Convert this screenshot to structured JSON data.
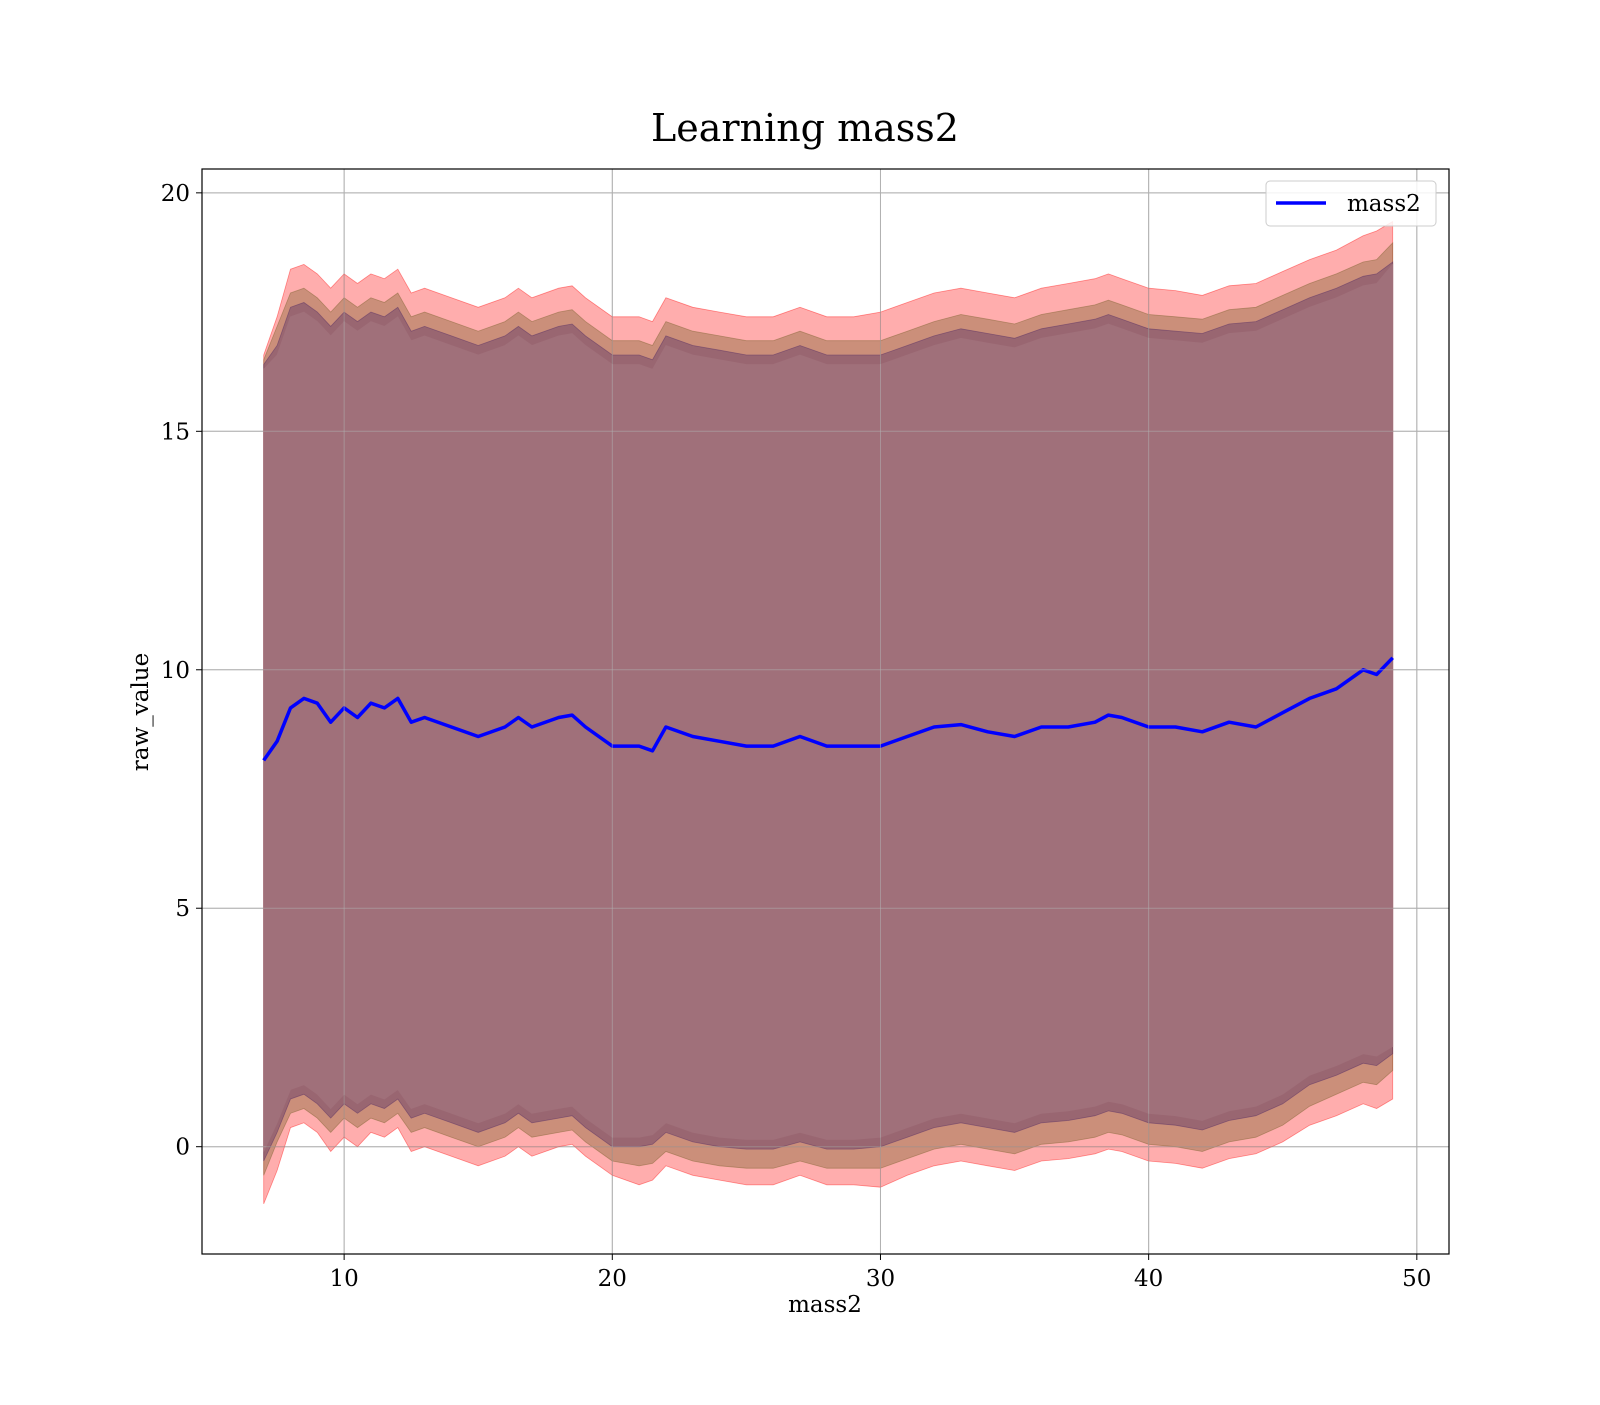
{
  "chart_data": {
    "type": "line",
    "title": "Learning mass2",
    "xlabel": "mass2",
    "ylabel": "raw_value",
    "xlim": [
      4.7,
      51.2
    ],
    "ylim": [
      -2.25,
      20.5
    ],
    "xticks": [
      10,
      20,
      30,
      40,
      50
    ],
    "yticks": [
      0,
      5,
      10,
      15,
      20
    ],
    "xtick_labels": [
      "10",
      "20",
      "30",
      "40",
      "50"
    ],
    "ytick_labels": [
      "0",
      "5",
      "10",
      "15",
      "20"
    ],
    "grid": true,
    "legend": {
      "position": "top-right",
      "entries": [
        "mass2"
      ]
    },
    "x": [
      7.0,
      7.5,
      8.0,
      8.5,
      9.0,
      9.5,
      10.0,
      10.5,
      11.0,
      11.5,
      12.0,
      12.5,
      13.0,
      14.0,
      15.0,
      16.0,
      16.5,
      17.0,
      18.0,
      18.5,
      19.0,
      20.0,
      21.0,
      21.5,
      22.0,
      23.0,
      24.0,
      25.0,
      26.0,
      27.0,
      28.0,
      29.0,
      30.0,
      31.0,
      32.0,
      33.0,
      34.0,
      35.0,
      36.0,
      37.0,
      38.0,
      38.5,
      39.0,
      40.0,
      41.0,
      42.0,
      43.0,
      44.0,
      45.0,
      46.0,
      47.0,
      48.0,
      48.5,
      49.1
    ],
    "series": [
      {
        "name": "mass2",
        "color": "#0000ff",
        "values": [
          8.1,
          8.5,
          9.2,
          9.4,
          9.3,
          8.9,
          9.2,
          9.0,
          9.3,
          9.2,
          9.4,
          8.9,
          9.0,
          8.8,
          8.6,
          8.8,
          9.0,
          8.8,
          9.0,
          9.05,
          8.8,
          8.4,
          8.4,
          8.3,
          8.8,
          8.6,
          8.5,
          8.4,
          8.4,
          8.6,
          8.4,
          8.4,
          8.4,
          8.6,
          8.8,
          8.85,
          8.7,
          8.6,
          8.8,
          8.8,
          8.9,
          9.05,
          9.0,
          8.8,
          8.8,
          8.7,
          8.9,
          8.8,
          9.1,
          9.4,
          9.6,
          10.0,
          9.9,
          10.25
        ]
      }
    ],
    "bands": [
      {
        "color": "#ff0000",
        "opacity": 0.32,
        "upper": [
          16.6,
          17.4,
          18.4,
          18.5,
          18.3,
          18.0,
          18.3,
          18.1,
          18.3,
          18.2,
          18.4,
          17.9,
          18.0,
          17.8,
          17.6,
          17.8,
          18.0,
          17.8,
          18.0,
          18.05,
          17.8,
          17.4,
          17.4,
          17.3,
          17.8,
          17.6,
          17.5,
          17.4,
          17.4,
          17.6,
          17.4,
          17.4,
          17.5,
          17.7,
          17.9,
          18.0,
          17.9,
          17.8,
          18.0,
          18.1,
          18.2,
          18.3,
          18.2,
          18.0,
          17.95,
          17.85,
          18.05,
          18.1,
          18.35,
          18.6,
          18.8,
          19.1,
          19.2,
          19.4
        ],
        "lower": [
          -1.2,
          -0.5,
          0.4,
          0.5,
          0.3,
          -0.1,
          0.2,
          0.0,
          0.3,
          0.2,
          0.4,
          -0.1,
          0.0,
          -0.2,
          -0.4,
          -0.2,
          0.0,
          -0.2,
          0.0,
          0.05,
          -0.2,
          -0.6,
          -0.8,
          -0.7,
          -0.4,
          -0.6,
          -0.7,
          -0.8,
          -0.8,
          -0.6,
          -0.8,
          -0.8,
          -0.85,
          -0.6,
          -0.4,
          -0.3,
          -0.4,
          -0.5,
          -0.3,
          -0.25,
          -0.15,
          -0.05,
          -0.1,
          -0.3,
          -0.35,
          -0.45,
          -0.25,
          -0.15,
          0.1,
          0.45,
          0.65,
          0.9,
          0.8,
          1.0
        ]
      },
      {
        "color": "#8b6a3c",
        "opacity": 0.45,
        "upper": [
          16.5,
          17.2,
          17.9,
          18.0,
          17.8,
          17.5,
          17.8,
          17.6,
          17.8,
          17.7,
          17.9,
          17.4,
          17.5,
          17.3,
          17.1,
          17.3,
          17.5,
          17.3,
          17.5,
          17.55,
          17.3,
          16.9,
          16.9,
          16.8,
          17.3,
          17.1,
          17.0,
          16.9,
          16.9,
          17.1,
          16.9,
          16.9,
          16.9,
          17.1,
          17.3,
          17.45,
          17.35,
          17.25,
          17.45,
          17.55,
          17.65,
          17.75,
          17.65,
          17.45,
          17.4,
          17.35,
          17.55,
          17.6,
          17.85,
          18.1,
          18.3,
          18.55,
          18.6,
          18.95
        ],
        "lower": [
          -0.6,
          0.1,
          0.7,
          0.8,
          0.6,
          0.3,
          0.6,
          0.4,
          0.6,
          0.5,
          0.7,
          0.3,
          0.4,
          0.2,
          0.0,
          0.2,
          0.4,
          0.2,
          0.3,
          0.35,
          0.1,
          -0.3,
          -0.4,
          -0.35,
          -0.1,
          -0.3,
          -0.4,
          -0.45,
          -0.45,
          -0.3,
          -0.45,
          -0.45,
          -0.45,
          -0.25,
          -0.05,
          0.05,
          -0.05,
          -0.15,
          0.05,
          0.1,
          0.2,
          0.3,
          0.25,
          0.05,
          0.0,
          -0.1,
          0.1,
          0.2,
          0.45,
          0.85,
          1.1,
          1.35,
          1.3,
          1.6
        ]
      },
      {
        "color": "#5e3566",
        "opacity": 0.45,
        "upper": [
          16.4,
          16.8,
          17.6,
          17.7,
          17.5,
          17.2,
          17.5,
          17.3,
          17.5,
          17.4,
          17.6,
          17.1,
          17.2,
          17.0,
          16.8,
          17.0,
          17.2,
          17.0,
          17.2,
          17.25,
          17.0,
          16.6,
          16.6,
          16.5,
          17.0,
          16.8,
          16.7,
          16.6,
          16.6,
          16.8,
          16.6,
          16.6,
          16.6,
          16.8,
          17.0,
          17.15,
          17.05,
          16.95,
          17.15,
          17.25,
          17.35,
          17.45,
          17.35,
          17.15,
          17.1,
          17.05,
          17.25,
          17.3,
          17.55,
          17.8,
          18.0,
          18.25,
          18.3,
          18.55
        ],
        "lower": [
          -0.3,
          0.3,
          1.0,
          1.1,
          0.9,
          0.6,
          0.9,
          0.7,
          0.9,
          0.8,
          1.0,
          0.6,
          0.7,
          0.5,
          0.3,
          0.5,
          0.7,
          0.5,
          0.6,
          0.65,
          0.4,
          0.0,
          0.0,
          0.05,
          0.3,
          0.1,
          0.0,
          -0.05,
          -0.05,
          0.1,
          -0.05,
          -0.05,
          0.0,
          0.2,
          0.4,
          0.5,
          0.4,
          0.3,
          0.5,
          0.55,
          0.65,
          0.75,
          0.7,
          0.5,
          0.45,
          0.35,
          0.55,
          0.65,
          0.9,
          1.3,
          1.5,
          1.75,
          1.7,
          1.95
        ]
      },
      {
        "color": "#a0707a",
        "opacity": 1.0,
        "upper": [
          16.3,
          16.6,
          17.4,
          17.5,
          17.3,
          17.0,
          17.3,
          17.1,
          17.3,
          17.2,
          17.4,
          16.9,
          17.0,
          16.8,
          16.6,
          16.8,
          17.0,
          16.8,
          17.0,
          17.05,
          16.8,
          16.4,
          16.4,
          16.3,
          16.8,
          16.6,
          16.5,
          16.4,
          16.4,
          16.6,
          16.4,
          16.4,
          16.4,
          16.6,
          16.8,
          16.95,
          16.85,
          16.75,
          16.95,
          17.05,
          17.15,
          17.25,
          17.15,
          16.95,
          16.9,
          16.85,
          17.05,
          17.1,
          17.35,
          17.6,
          17.8,
          18.05,
          18.1,
          18.5
        ],
        "lower": [
          -0.1,
          0.5,
          1.2,
          1.3,
          1.1,
          0.8,
          1.1,
          0.9,
          1.1,
          1.0,
          1.2,
          0.8,
          0.9,
          0.7,
          0.5,
          0.7,
          0.9,
          0.7,
          0.8,
          0.85,
          0.6,
          0.2,
          0.2,
          0.25,
          0.5,
          0.3,
          0.2,
          0.15,
          0.15,
          0.3,
          0.15,
          0.15,
          0.2,
          0.4,
          0.6,
          0.7,
          0.6,
          0.5,
          0.7,
          0.75,
          0.85,
          0.95,
          0.9,
          0.7,
          0.65,
          0.55,
          0.75,
          0.85,
          1.1,
          1.5,
          1.7,
          1.95,
          1.9,
          2.1
        ]
      }
    ]
  }
}
